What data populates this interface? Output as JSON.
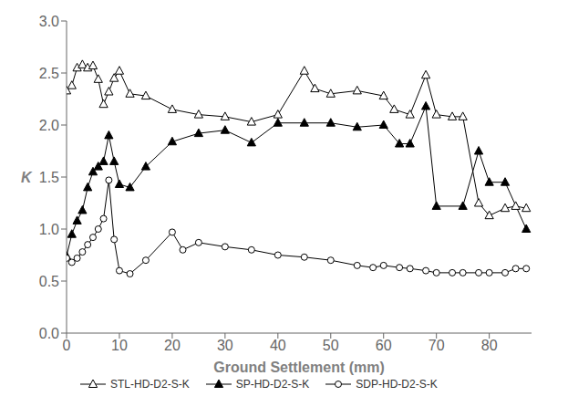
{
  "chart_data": {
    "type": "line",
    "xlabel": "Ground Settlement (mm)",
    "ylabel": "K",
    "xlim": [
      0,
      88
    ],
    "xticks": [
      0,
      10,
      20,
      30,
      40,
      50,
      60,
      70,
      80
    ],
    "ylim": [
      0.0,
      3.0
    ],
    "yticks": [
      {
        "value": 0,
        "label": "0.0"
      },
      0.5,
      {
        "value": 1,
        "label": "1.0"
      },
      1.5,
      {
        "value": 2,
        "label": "2.0"
      },
      2.5,
      {
        "value": 3,
        "label": "3.0"
      }
    ],
    "legend": "lower left",
    "series": [
      {
        "name": "STL-HD-D2-S-K",
        "color": "#000000",
        "marker": "triangle_open",
        "x": [
          0,
          1,
          2,
          3,
          4,
          5,
          6,
          7,
          8,
          9,
          10,
          12,
          15,
          20,
          25,
          30,
          35,
          40,
          45,
          47,
          50,
          55,
          60,
          62,
          65,
          68,
          70,
          73,
          75,
          78,
          80,
          83,
          85,
          87
        ],
        "values": [
          2.33,
          2.38,
          2.55,
          2.58,
          2.55,
          2.57,
          2.44,
          2.2,
          2.32,
          2.45,
          2.52,
          2.3,
          2.28,
          2.15,
          2.1,
          2.08,
          2.03,
          2.1,
          2.52,
          2.35,
          2.3,
          2.33,
          2.28,
          2.15,
          2.1,
          2.48,
          2.1,
          2.08,
          2.08,
          1.25,
          1.13,
          1.2,
          1.22,
          1.2
        ]
      },
      {
        "name": "SP-HD-D2-S-K",
        "color": "#000000",
        "marker": "triangle_filled",
        "x": [
          0,
          1,
          2,
          3,
          4,
          5,
          6,
          7,
          8,
          9,
          10,
          12,
          15,
          20,
          25,
          30,
          35,
          40,
          45,
          50,
          55,
          60,
          63,
          65,
          68,
          70,
          75,
          78,
          80,
          83,
          87
        ],
        "values": [
          0.74,
          0.95,
          1.08,
          1.18,
          1.4,
          1.55,
          1.6,
          1.65,
          1.9,
          1.65,
          1.43,
          1.4,
          1.6,
          1.84,
          1.92,
          1.95,
          1.83,
          2.02,
          2.02,
          2.02,
          1.98,
          2.0,
          1.82,
          1.82,
          2.18,
          1.22,
          1.22,
          1.75,
          1.45,
          1.45,
          1.0
        ]
      },
      {
        "name": "SDP-HD-D2-S-K",
        "color": "#000000",
        "marker": "circle_open",
        "x": [
          0,
          1,
          2,
          3,
          4,
          5,
          6,
          7,
          8,
          9,
          10,
          12,
          15,
          20,
          22,
          25,
          30,
          35,
          40,
          45,
          50,
          55,
          58,
          60,
          63,
          65,
          68,
          70,
          73,
          75,
          78,
          80,
          83,
          85,
          87
        ],
        "values": [
          0.72,
          0.68,
          0.72,
          0.78,
          0.85,
          0.92,
          1.0,
          1.1,
          1.47,
          0.9,
          0.6,
          0.57,
          0.7,
          0.97,
          0.8,
          0.87,
          0.83,
          0.8,
          0.75,
          0.73,
          0.7,
          0.65,
          0.63,
          0.65,
          0.63,
          0.62,
          0.6,
          0.58,
          0.58,
          0.58,
          0.58,
          0.58,
          0.58,
          0.62,
          0.62
        ]
      }
    ]
  }
}
